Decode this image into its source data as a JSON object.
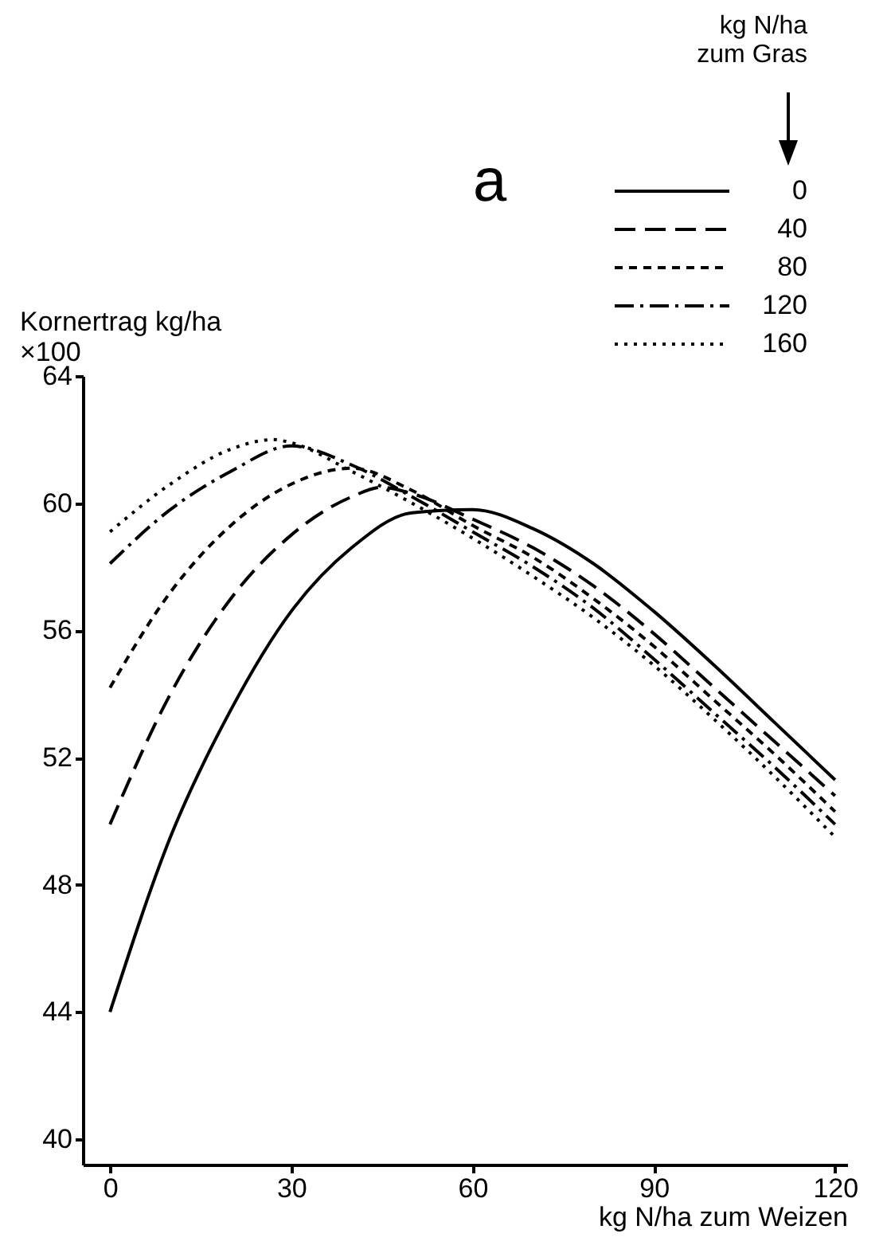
{
  "chart_data": {
    "type": "line",
    "title": "a",
    "xlabel": "kg N/ha zum Weizen",
    "ylabel": "Kornertrag kg/ha\n×100",
    "legend_title": "kg N/ha\nzum Gras",
    "legend": "top right",
    "grid": false,
    "xlim": [
      -4.5,
      122
    ],
    "xticks": [
      0,
      30,
      60,
      90,
      120
    ],
    "ylim": [
      39.2,
      64
    ],
    "yticks": [
      40,
      44,
      48,
      52,
      56,
      60,
      64
    ],
    "series": [
      {
        "name": "0",
        "color": "#000000",
        "line_style": "solid",
        "x": [
          0,
          10,
          20,
          30,
          40,
          50,
          60,
          70,
          80,
          90,
          100,
          110,
          120
        ],
        "values": [
          44,
          49.5,
          53.5,
          56.6,
          58.6,
          59.7,
          59.8,
          59.2,
          58.1,
          56.6,
          54.9,
          53.1,
          51.3
        ]
      },
      {
        "name": "40",
        "color": "#000000",
        "line_style": "longdash",
        "x": [
          0,
          10,
          20,
          30,
          40,
          45,
          50,
          60,
          70,
          80,
          90,
          100,
          110,
          120
        ],
        "values": [
          49.9,
          54,
          57,
          59,
          60.2,
          60.5,
          60.3,
          59.5,
          58.6,
          57.4,
          55.9,
          54.2,
          52.5,
          50.8
        ]
      },
      {
        "name": "80",
        "color": "#000000",
        "line_style": "dashed",
        "x": [
          0,
          10,
          20,
          30,
          40,
          50,
          60,
          70,
          80,
          90,
          100,
          110,
          120
        ],
        "values": [
          54.2,
          57.2,
          59.3,
          60.6,
          61.1,
          60.4,
          59.3,
          58.3,
          57,
          55.5,
          53.8,
          52.1,
          50.3
        ]
      },
      {
        "name": "120",
        "color": "#000000",
        "line_style": "dashdot",
        "x": [
          0,
          10,
          20,
          30,
          40,
          50,
          60,
          70,
          80,
          90,
          100,
          110,
          120
        ],
        "values": [
          58.1,
          59.8,
          61,
          61.8,
          61.2,
          60.2,
          59.1,
          58,
          56.7,
          55.1,
          53.4,
          51.7,
          49.9
        ]
      },
      {
        "name": "160",
        "color": "#000000",
        "line_style": "dotted",
        "x": [
          0,
          10,
          20,
          27,
          30,
          40,
          50,
          60,
          70,
          80,
          90,
          100,
          110,
          120
        ],
        "values": [
          59.1,
          60.6,
          61.7,
          62,
          61.9,
          61,
          60,
          58.9,
          57.7,
          56.4,
          54.9,
          53.2,
          51.4,
          49.5
        ]
      }
    ]
  }
}
